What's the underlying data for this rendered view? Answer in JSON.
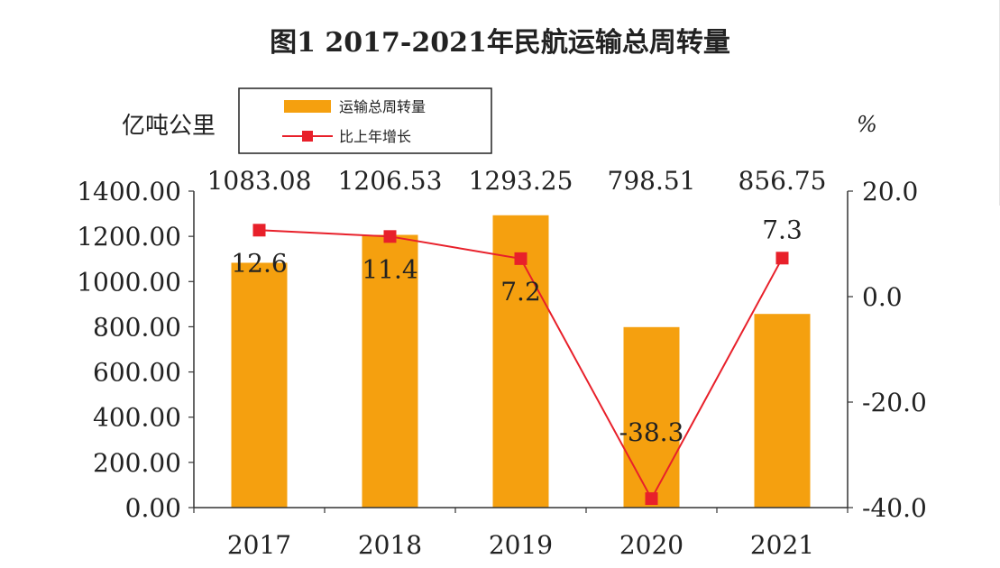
{
  "chart_data": {
    "type": "bar",
    "title": "图1  2017-2021年民航运输总周转量",
    "left_unit": "亿吨公里",
    "right_unit": "%",
    "categories": [
      "2017",
      "2018",
      "2019",
      "2020",
      "2021"
    ],
    "series": [
      {
        "name": "运输总周转量",
        "type": "bar",
        "axis": "left",
        "values": [
          1083.08,
          1206.53,
          1293.25,
          798.51,
          856.75
        ],
        "labels": [
          "1083.08",
          "1206.53",
          "1293.25",
          "798.51",
          "856.75"
        ],
        "color": "#f5a00f"
      },
      {
        "name": "比上年增长",
        "type": "line",
        "axis": "right",
        "values": [
          12.6,
          11.4,
          7.2,
          -38.3,
          7.3
        ],
        "labels": [
          "12.6",
          "11.4",
          "7.2",
          "-38.3",
          "7.3"
        ],
        "color": "#e8202a"
      }
    ],
    "y_left": {
      "range": [
        0,
        1400
      ],
      "ticks": [
        0,
        200,
        400,
        600,
        800,
        1000,
        1200,
        1400
      ],
      "tick_labels": [
        "0.00",
        "200.00",
        "400.00",
        "600.00",
        "800.00",
        "1000.00",
        "1200.00",
        "1400.00"
      ]
    },
    "y_right": {
      "range": [
        -40,
        20
      ],
      "ticks": [
        -40,
        -20,
        0,
        20
      ],
      "tick_labels": [
        "-40.0",
        "-20.0",
        "0.0",
        "20.0"
      ]
    },
    "grid": false,
    "legend": "top-center"
  }
}
